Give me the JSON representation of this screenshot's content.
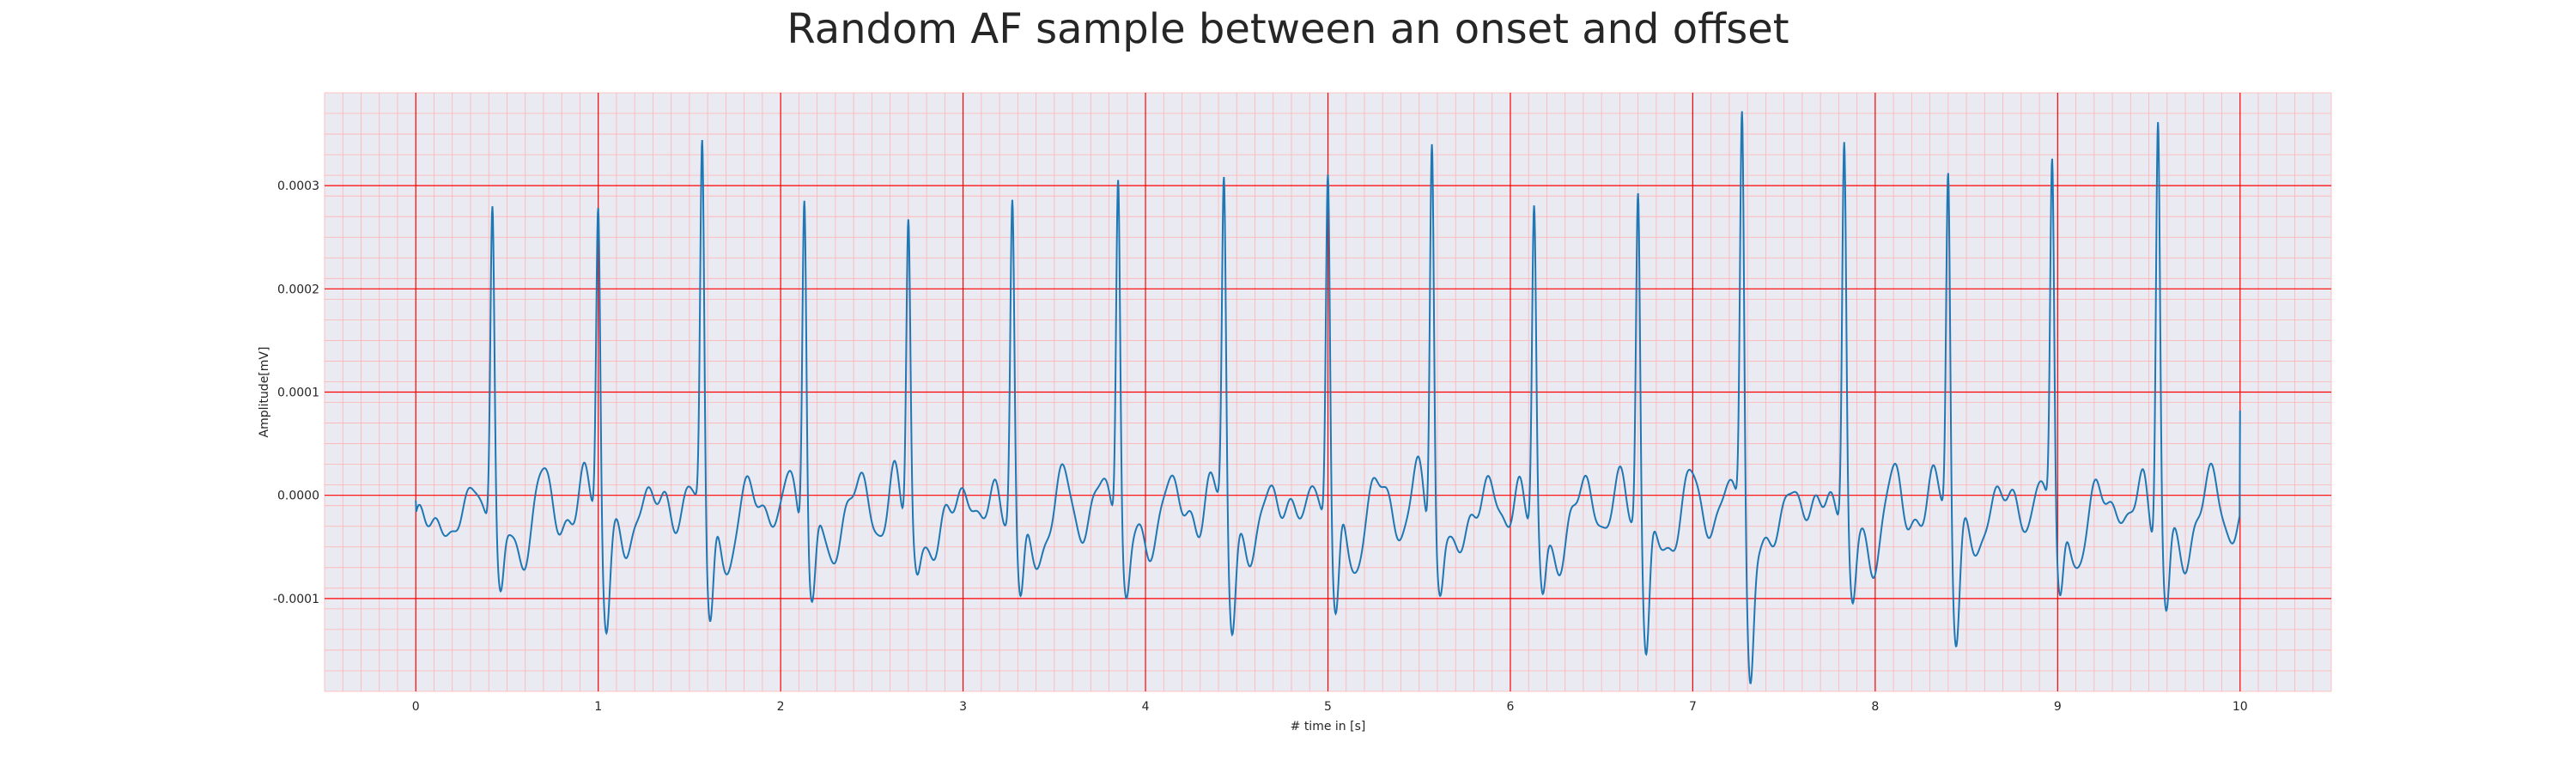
{
  "chart_data": {
    "type": "line",
    "title": "Random AF sample between an onset and offset",
    "xlabel": "# time in [s]",
    "ylabel": "Amplitude[mV]",
    "xlim": [
      -0.5,
      10.5
    ],
    "ylim": [
      -0.00019,
      0.00039
    ],
    "xticks": [
      0,
      1,
      2,
      3,
      4,
      5,
      6,
      7,
      8,
      9,
      10
    ],
    "xtick_labels": [
      "0",
      "1",
      "2",
      "3",
      "4",
      "5",
      "6",
      "7",
      "8",
      "9",
      "10"
    ],
    "yticks": [
      -0.0001,
      0.0,
      0.0001,
      0.0002,
      0.0003
    ],
    "ytick_labels": [
      "-0.0001",
      "0.0000",
      "0.0001",
      "0.0002",
      "0.0003"
    ],
    "grid": true,
    "colors": {
      "background": "#eaeaf2",
      "line": "#1f77b4",
      "major_grid": "#ff0000",
      "minor_grid": "#ffb3b3"
    },
    "series": [
      {
        "r_peaks": [
          {
            "t": 0.42,
            "amp": 0.000283,
            "trough": -9.5e-05
          },
          {
            "t": 1.0,
            "amp": 0.000281,
            "trough": -0.000102
          },
          {
            "t": 1.57,
            "amp": 0.00034,
            "trough": -0.000118
          },
          {
            "t": 2.13,
            "amp": 0.000311,
            "trough": -0.000104
          },
          {
            "t": 2.7,
            "amp": 0.000263,
            "trough": -6.5e-05
          },
          {
            "t": 3.27,
            "amp": 0.000275,
            "trough": -0.000101
          },
          {
            "t": 3.85,
            "amp": 0.000315,
            "trough": -8.5e-05
          },
          {
            "t": 4.43,
            "amp": 0.000297,
            "trough": -0.000109
          },
          {
            "t": 5.0,
            "amp": 0.000322,
            "trough": -0.000121
          },
          {
            "t": 5.57,
            "amp": 0.000358,
            "trough": -9e-05
          },
          {
            "t": 6.13,
            "amp": 0.000268,
            "trough": -9.7e-05
          },
          {
            "t": 6.7,
            "amp": 0.000298,
            "trough": -0.000148
          },
          {
            "t": 7.27,
            "amp": 0.000369,
            "trough": -0.000165
          },
          {
            "t": 7.83,
            "amp": 0.000336,
            "trough": -0.000101
          },
          {
            "t": 8.4,
            "amp": 0.000318,
            "trough": -0.000116
          },
          {
            "t": 8.97,
            "amp": 0.000326,
            "trough": -9.6e-05
          },
          {
            "t": 9.55,
            "amp": 0.000369,
            "trough": -0.000118
          }
        ],
        "t_start": 0.0,
        "t_end": 10.0,
        "start_value": -5e-06,
        "end_value": 8.2e-05
      }
    ]
  }
}
